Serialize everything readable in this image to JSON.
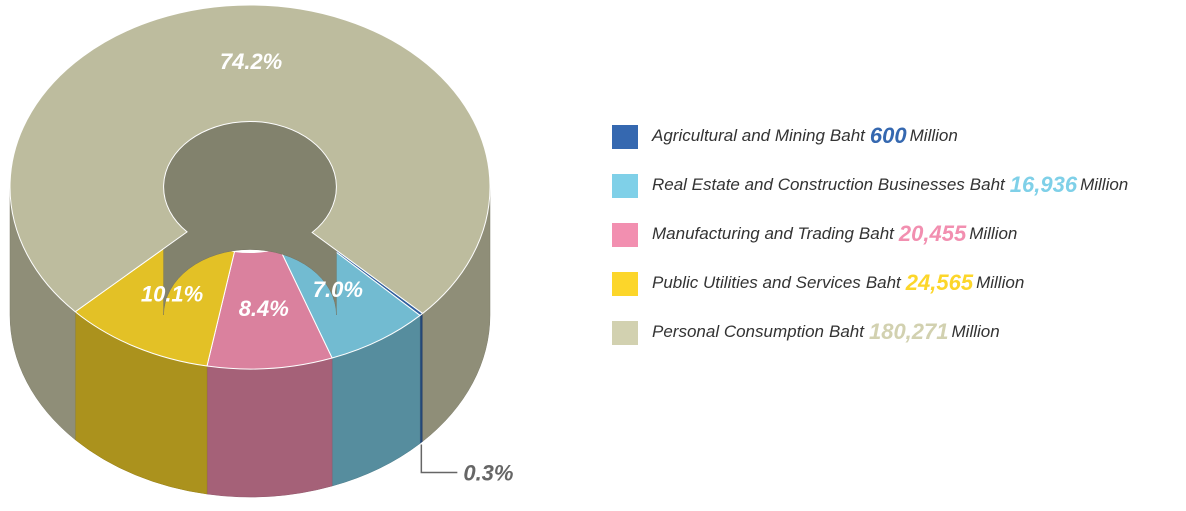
{
  "chart_data": {
    "type": "donut3d",
    "categories": [
      "Agricultural and Mining",
      "Real Estate and Construction Businesses",
      "Manufacturing and Trading",
      "Public Utilities and Services",
      "Personal Consumption"
    ],
    "currency": "Baht",
    "unit": "Million",
    "values": [
      600,
      16936,
      20455,
      24565,
      180271
    ],
    "value_labels": [
      "600",
      "16,936",
      "20,455",
      "24,565",
      "180,271"
    ],
    "percent_values": [
      0.3,
      7.0,
      8.4,
      10.1,
      74.2
    ],
    "percent_labels": [
      "0.3%",
      "7.0%",
      "8.4%",
      "10.1%",
      "74.2%"
    ],
    "colors": [
      "#3568b0",
      "#7fd0e8",
      "#f28fb0",
      "#fcd62a",
      "#d2d1b0"
    ],
    "legend": "right"
  }
}
